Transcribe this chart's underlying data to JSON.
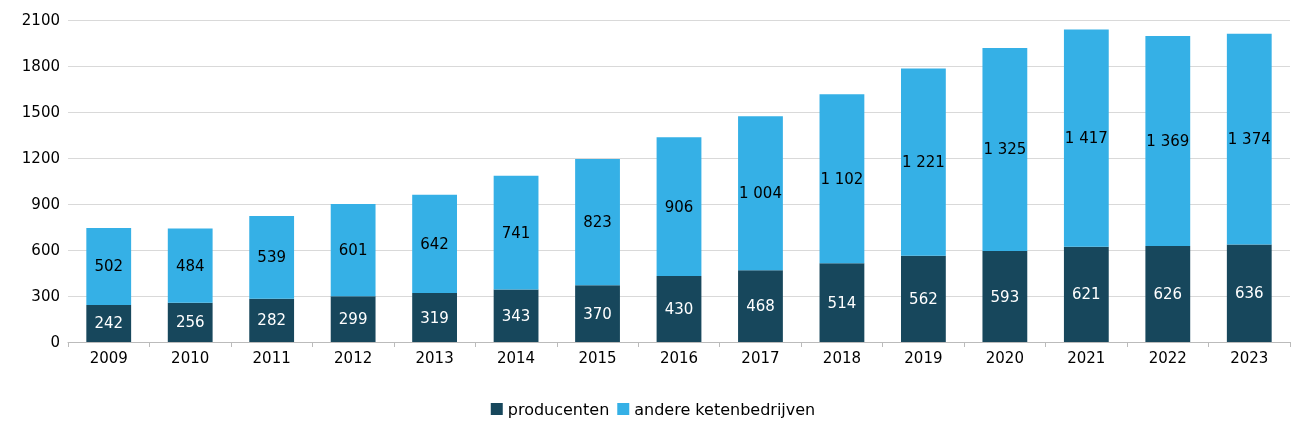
{
  "chart_data": {
    "type": "bar",
    "stacked": true,
    "categories": [
      "2009",
      "2010",
      "2011",
      "2012",
      "2013",
      "2014",
      "2015",
      "2016",
      "2017",
      "2018",
      "2019",
      "2020",
      "2021",
      "2022",
      "2023"
    ],
    "series": [
      {
        "name": "producenten",
        "color": "#17475c",
        "values": [
          242,
          256,
          282,
          299,
          319,
          343,
          370,
          430,
          468,
          514,
          562,
          593,
          621,
          626,
          636
        ],
        "value_labels": [
          "242",
          "256",
          "282",
          "299",
          "319",
          "343",
          "370",
          "430",
          "468",
          "514",
          "562",
          "593",
          "621",
          "626",
          "636"
        ]
      },
      {
        "name": "andere ketenbedrijven",
        "color": "#35b0e6",
        "values": [
          502,
          484,
          539,
          601,
          642,
          741,
          823,
          906,
          1004,
          1102,
          1221,
          1325,
          1417,
          1369,
          1374
        ],
        "value_labels": [
          "502",
          "484",
          "539",
          "601",
          "642",
          "741",
          "823",
          "906",
          "1 004",
          "1 102",
          "1 221",
          "1 325",
          "1 417",
          "1 369",
          "1 374"
        ]
      }
    ],
    "ylim": [
      0,
      2100
    ],
    "yticks": [
      0,
      300,
      600,
      900,
      1200,
      1500,
      1800,
      2100
    ],
    "grid": "y",
    "legend": "bottom"
  }
}
